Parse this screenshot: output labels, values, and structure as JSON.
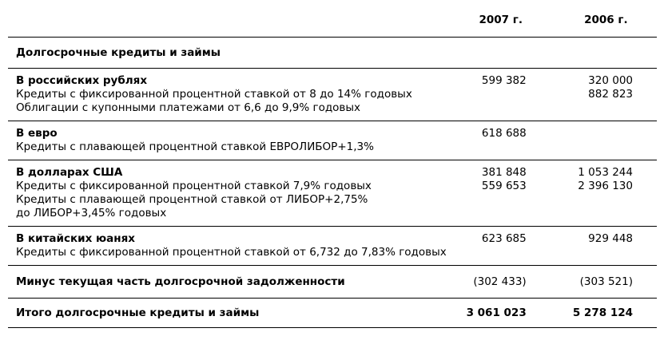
{
  "header": {
    "col_2007": "2007 г.",
    "col_2006": "2006 г."
  },
  "section_title": "Долгосрочные кредиты и займы",
  "groups": [
    {
      "title": "В российских рублях",
      "lines": [
        "Кредиты с фиксированной процентной ставкой от 8 до 14% годовых",
        "Облигации с купонными платежами от 6,6 до 9,9% годовых"
      ],
      "values_2007": [
        "599 382",
        "",
        ""
      ],
      "values_2006": [
        "320 000",
        "882 823",
        ""
      ]
    },
    {
      "title": "В евро",
      "lines": [
        "Кредиты с плавающей процентной ставкой ЕВРОЛИБОР+1,3%"
      ],
      "values_2007": [
        "618 688",
        ""
      ],
      "values_2006": [
        "",
        ""
      ]
    },
    {
      "title": "В долларах США",
      "lines": [
        "Кредиты с фиксированной процентной ставкой 7,9% годовых",
        "Кредиты с плавающей процентной ставкой от ЛИБОР+2,75%",
        "до ЛИБОР+3,45% годовых"
      ],
      "values_2007": [
        "381 848",
        "559 653",
        "",
        ""
      ],
      "values_2006": [
        "1 053 244",
        "2 396 130",
        "",
        ""
      ]
    },
    {
      "title": "В китайских юанях",
      "lines": [
        "Кредиты с фиксированной процентной ставкой от 6,732 до 7,83% годовых"
      ],
      "values_2007": [
        "623 685",
        ""
      ],
      "values_2006": [
        "929 448",
        ""
      ]
    }
  ],
  "minus_row": {
    "label": "Минус текущая часть долгосрочной задолженности",
    "value_2007": "(302 433)",
    "value_2006": "(303 521)"
  },
  "total_row": {
    "label": "Итого долгосрочные кредиты и займы",
    "value_2007": "3 061 023",
    "value_2006": "5 278 124"
  }
}
